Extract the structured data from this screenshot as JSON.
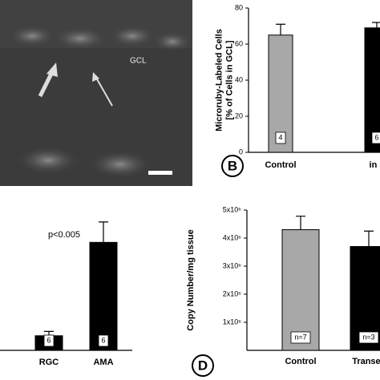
{
  "image_panel": {
    "label": "GCL"
  },
  "chart_data": [
    {
      "type": "bar",
      "panel_label": "B",
      "y_label": [
        "Microruby-Labeled Cells",
        "[% of Cells in GCL]"
      ],
      "categories": [
        "Control",
        "in s"
      ],
      "values": [
        65,
        69
      ],
      "errors": [
        6,
        3
      ],
      "bar_labels": [
        "4",
        "6"
      ],
      "colors": [
        "#a8a8a8",
        "#000000"
      ],
      "ylim": [
        0,
        80
      ],
      "yticks": [
        0,
        20,
        40,
        60,
        80
      ]
    },
    {
      "type": "bar",
      "annotation": "p<0.005",
      "categories": [
        "RGC",
        "AMA"
      ],
      "values": [
        10,
        74
      ],
      "errors": [
        3,
        14
      ],
      "bar_labels": [
        "6",
        "6"
      ],
      "colors": [
        "#000000",
        "#000000"
      ],
      "ylim": [
        0,
        100
      ]
    },
    {
      "type": "bar",
      "panel_label": "D",
      "y_label": [
        "Copy Number/mg tissue"
      ],
      "categories": [
        "Control",
        "Transec"
      ],
      "values": [
        4300000,
        3700000
      ],
      "errors": [
        480000,
        550000
      ],
      "bar_labels": [
        "n=7",
        "n=3"
      ],
      "colors": [
        "#a8a8a8",
        "#000000"
      ],
      "ylim": [
        0,
        5000000
      ],
      "yticks": [
        {
          "value": 1000000,
          "label": "1x10⁶"
        },
        {
          "value": 2000000,
          "label": "2x10⁶"
        },
        {
          "value": 3000000,
          "label": "3x10⁶"
        },
        {
          "value": 4000000,
          "label": "4x10⁶"
        },
        {
          "value": 5000000,
          "label": "5x10⁶"
        }
      ]
    }
  ]
}
